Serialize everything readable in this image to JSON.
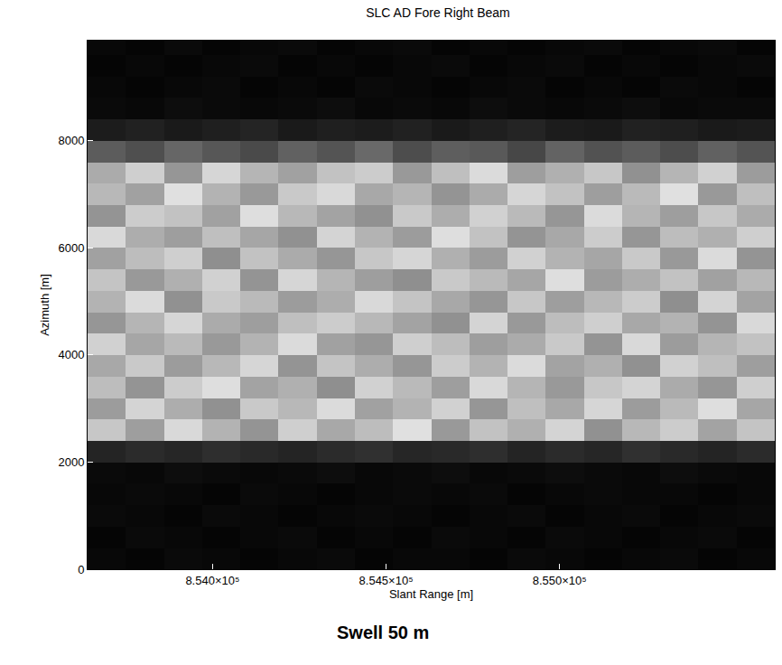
{
  "chart_data": {
    "type": "heatmap",
    "title": "SLC AD Fore Right Beam",
    "x_label": "Slant Range [m]",
    "y_label": "Azimuth [m]",
    "annotations": [
      {
        "text": "Swell 50 m"
      }
    ],
    "xlim": [
      853640,
      855620
    ],
    "ylim": [
      0,
      9870
    ],
    "xticks": [
      {
        "value": 854000,
        "label": "8.540×10⁵"
      },
      {
        "value": 854500,
        "label": "8.545×10⁵"
      },
      {
        "value": 855000,
        "label": "8.550×10⁵"
      }
    ],
    "yticks": [
      0,
      2000,
      4000,
      6000,
      8000
    ],
    "grid": false,
    "x": [
      853640,
      853750,
      853860,
      853970,
      854080,
      854190,
      854300,
      854410,
      854520,
      854630,
      854740,
      854850,
      854960,
      855070,
      855180,
      855290,
      855400,
      855510,
      855620
    ],
    "y": [
      0,
      400,
      800,
      1200,
      1600,
      2000,
      2400,
      2800,
      3200,
      3600,
      4000,
      4400,
      4800,
      5200,
      5600,
      6000,
      6400,
      6800,
      7200,
      7600,
      8000,
      8400,
      8800,
      9200,
      9600,
      10000
    ],
    "zlim": [
      0,
      1
    ],
    "z": [
      [
        0.03,
        0.02,
        0.04,
        0.03,
        0.02,
        0.03,
        0.04,
        0.02,
        0.03,
        0.03,
        0.02,
        0.04,
        0.03,
        0.02,
        0.03,
        0.04,
        0.02,
        0.03
      ],
      [
        0.02,
        0.04,
        0.03,
        0.02,
        0.03,
        0.04,
        0.02,
        0.03,
        0.02,
        0.04,
        0.03,
        0.02,
        0.04,
        0.03,
        0.02,
        0.03,
        0.04,
        0.02
      ],
      [
        0.04,
        0.03,
        0.02,
        0.04,
        0.03,
        0.02,
        0.03,
        0.04,
        0.03,
        0.02,
        0.03,
        0.04,
        0.02,
        0.03,
        0.04,
        0.02,
        0.03,
        0.04
      ],
      [
        0.03,
        0.04,
        0.03,
        0.02,
        0.04,
        0.03,
        0.02,
        0.03,
        0.04,
        0.03,
        0.04,
        0.02,
        0.03,
        0.04,
        0.03,
        0.03,
        0.02,
        0.03
      ],
      [
        0.04,
        0.03,
        0.05,
        0.04,
        0.03,
        0.04,
        0.05,
        0.03,
        0.04,
        0.05,
        0.03,
        0.04,
        0.05,
        0.04,
        0.03,
        0.05,
        0.04,
        0.03
      ],
      [
        0.14,
        0.17,
        0.15,
        0.18,
        0.16,
        0.14,
        0.17,
        0.19,
        0.15,
        0.16,
        0.18,
        0.14,
        0.17,
        0.15,
        0.19,
        0.16,
        0.14,
        0.17
      ],
      [
        0.78,
        0.62,
        0.85,
        0.7,
        0.58,
        0.81,
        0.66,
        0.74,
        0.88,
        0.6,
        0.76,
        0.69,
        0.83,
        0.57,
        0.72,
        0.8,
        0.64,
        0.77
      ],
      [
        0.61,
        0.83,
        0.68,
        0.57,
        0.79,
        0.72,
        0.86,
        0.63,
        0.7,
        0.82,
        0.59,
        0.75,
        0.66,
        0.84,
        0.61,
        0.73,
        0.87,
        0.65
      ],
      [
        0.74,
        0.58,
        0.8,
        0.87,
        0.64,
        0.69,
        0.56,
        0.82,
        0.73,
        0.62,
        0.85,
        0.71,
        0.6,
        0.78,
        0.83,
        0.67,
        0.59,
        0.81
      ],
      [
        0.66,
        0.79,
        0.61,
        0.72,
        0.84,
        0.58,
        0.77,
        0.68,
        0.59,
        0.8,
        0.7,
        0.86,
        0.64,
        0.69,
        0.57,
        0.82,
        0.75,
        0.62
      ],
      [
        0.82,
        0.65,
        0.73,
        0.6,
        0.7,
        0.86,
        0.63,
        0.59,
        0.81,
        0.74,
        0.62,
        0.67,
        0.79,
        0.58,
        0.85,
        0.61,
        0.71,
        0.76
      ],
      [
        0.59,
        0.71,
        0.84,
        0.67,
        0.62,
        0.75,
        0.8,
        0.72,
        0.64,
        0.57,
        0.83,
        0.6,
        0.74,
        0.81,
        0.66,
        0.7,
        0.58,
        0.85
      ],
      [
        0.7,
        0.86,
        0.57,
        0.79,
        0.73,
        0.61,
        0.68,
        0.85,
        0.77,
        0.66,
        0.59,
        0.78,
        0.62,
        0.72,
        0.8,
        0.56,
        0.83,
        0.64
      ],
      [
        0.77,
        0.6,
        0.69,
        0.82,
        0.58,
        0.84,
        0.71,
        0.62,
        0.56,
        0.79,
        0.73,
        0.65,
        0.87,
        0.61,
        0.68,
        0.76,
        0.63,
        0.72
      ],
      [
        0.63,
        0.74,
        0.81,
        0.56,
        0.76,
        0.67,
        0.59,
        0.78,
        0.84,
        0.69,
        0.61,
        0.82,
        0.7,
        0.65,
        0.79,
        0.6,
        0.86,
        0.58
      ],
      [
        0.85,
        0.68,
        0.62,
        0.75,
        0.65,
        0.57,
        0.83,
        0.7,
        0.61,
        0.87,
        0.76,
        0.58,
        0.66,
        0.8,
        0.59,
        0.74,
        0.69,
        0.81
      ],
      [
        0.58,
        0.8,
        0.76,
        0.63,
        0.87,
        0.72,
        0.64,
        0.57,
        0.79,
        0.68,
        0.82,
        0.73,
        0.59,
        0.86,
        0.71,
        0.62,
        0.78,
        0.67
      ],
      [
        0.72,
        0.63,
        0.88,
        0.7,
        0.6,
        0.79,
        0.85,
        0.66,
        0.71,
        0.58,
        0.67,
        0.84,
        0.76,
        0.62,
        0.73,
        0.88,
        0.6,
        0.75
      ],
      [
        0.67,
        0.81,
        0.59,
        0.84,
        0.71,
        0.63,
        0.76,
        0.8,
        0.6,
        0.75,
        0.86,
        0.62,
        0.69,
        0.78,
        0.57,
        0.71,
        0.82,
        0.61
      ],
      [
        0.36,
        0.31,
        0.4,
        0.34,
        0.29,
        0.38,
        0.33,
        0.41,
        0.3,
        0.37,
        0.35,
        0.28,
        0.39,
        0.32,
        0.36,
        0.3,
        0.38,
        0.33
      ],
      [
        0.11,
        0.13,
        0.1,
        0.12,
        0.14,
        0.1,
        0.12,
        0.11,
        0.13,
        0.1,
        0.12,
        0.14,
        0.11,
        0.1,
        0.13,
        0.12,
        0.1,
        0.11
      ],
      [
        0.04,
        0.03,
        0.05,
        0.04,
        0.03,
        0.04,
        0.05,
        0.03,
        0.04,
        0.03,
        0.05,
        0.04,
        0.03,
        0.04,
        0.05,
        0.03,
        0.04,
        0.04
      ],
      [
        0.03,
        0.02,
        0.03,
        0.04,
        0.02,
        0.03,
        0.02,
        0.04,
        0.03,
        0.02,
        0.03,
        0.04,
        0.02,
        0.03,
        0.02,
        0.04,
        0.03,
        0.02
      ],
      [
        0.02,
        0.03,
        0.02,
        0.03,
        0.04,
        0.02,
        0.03,
        0.02,
        0.03,
        0.04,
        0.02,
        0.03,
        0.04,
        0.02,
        0.03,
        0.02,
        0.03,
        0.04
      ],
      [
        0.03,
        0.02,
        0.04,
        0.02,
        0.03,
        0.04,
        0.02,
        0.03,
        0.04,
        0.02,
        0.03,
        0.02,
        0.03,
        0.04,
        0.02,
        0.03,
        0.04,
        0.02
      ]
    ]
  }
}
